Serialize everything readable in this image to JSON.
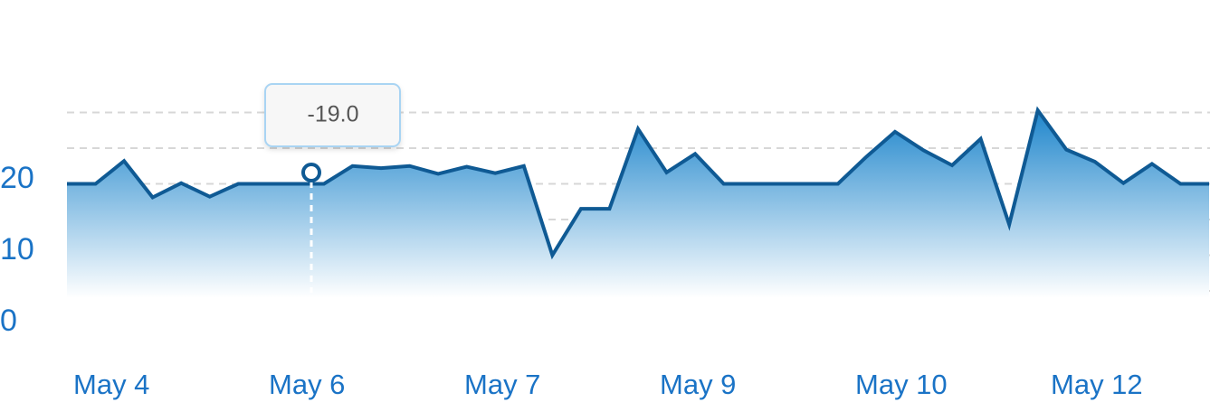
{
  "chart_data": {
    "type": "area",
    "x_ticks": [
      "May 4",
      "May 6",
      "May 7",
      "May 9",
      "May 10",
      "May 12"
    ],
    "y_ticks": [
      "0",
      "10",
      "20"
    ],
    "ylim": [
      -1,
      26
    ],
    "grid": true,
    "colors": {
      "line": "#0f5a94",
      "fill_top": "#1f86cc",
      "fill_bottom": "#ffffff",
      "tick_text": "#1a73c6",
      "grid": "#d7d7d7"
    },
    "series": [
      {
        "values": [
          15,
          15,
          18.2,
          13.1,
          15.1,
          13.2,
          15,
          15,
          15,
          15,
          17.5,
          17.2,
          17.5,
          16.4,
          17.4,
          16.5,
          17.5,
          5,
          11.5,
          11.5,
          22.7,
          16.6,
          19.2,
          15,
          15,
          15,
          15,
          15,
          18.8,
          22.3,
          19.7,
          17.6,
          21.3,
          9.3,
          25.3,
          19.8,
          18.1,
          15.1,
          17.8,
          15,
          15
        ]
      }
    ],
    "tooltip": {
      "label": "-19.0",
      "category": "May 6"
    }
  }
}
